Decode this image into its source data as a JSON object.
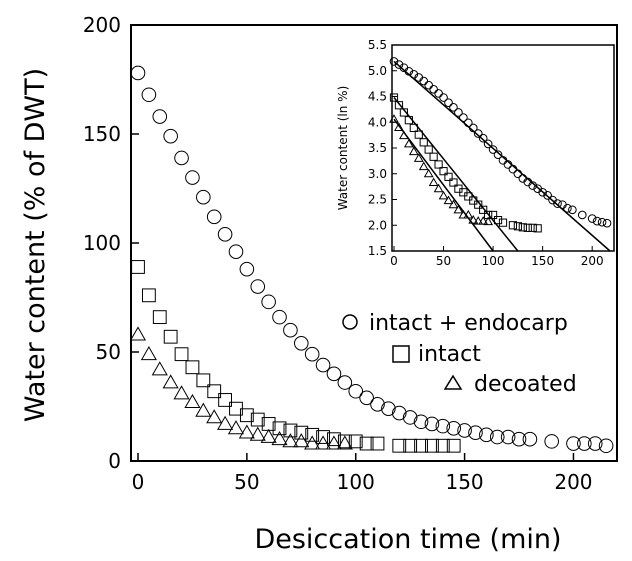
{
  "chart_data": [
    {
      "type": "scatter",
      "xlabel": "Desiccation time (min)",
      "ylabel": "Water content (% of DWT)",
      "xlim": [
        0,
        220
      ],
      "ylim": [
        0,
        200
      ],
      "xticks": [
        "0",
        "50",
        "100",
        "150",
        "200"
      ],
      "yticks": [
        "0",
        "50",
        "100",
        "150",
        "200"
      ],
      "legend_position": "right",
      "series": [
        {
          "name": "intact + endocarp",
          "marker": "circle",
          "x": [
            0,
            5,
            10,
            15,
            20,
            25,
            30,
            35,
            40,
            45,
            50,
            55,
            60,
            65,
            70,
            75,
            80,
            85,
            90,
            95,
            100,
            105,
            110,
            115,
            120,
            125,
            130,
            135,
            140,
            145,
            150,
            155,
            160,
            165,
            170,
            175,
            180,
            190,
            200,
            205,
            210,
            215
          ],
          "y": [
            178,
            168,
            158,
            149,
            139,
            130,
            121,
            112,
            104,
            96,
            88,
            80,
            73,
            66,
            60,
            54,
            49,
            44,
            40,
            36,
            32,
            29,
            26,
            24,
            22,
            20,
            18,
            17,
            16,
            15,
            14,
            13,
            12,
            11,
            11,
            10,
            10,
            9,
            8,
            8,
            8,
            7
          ]
        },
        {
          "name": "intact",
          "marker": "square",
          "x": [
            0,
            5,
            10,
            15,
            20,
            25,
            30,
            35,
            40,
            45,
            50,
            55,
            60,
            65,
            70,
            75,
            80,
            85,
            90,
            95,
            100,
            105,
            110,
            120,
            125,
            130,
            135,
            140,
            145
          ],
          "y": [
            89,
            76,
            66,
            57,
            49,
            43,
            37,
            32,
            28,
            24,
            21,
            19,
            17,
            15,
            14,
            13,
            12,
            11,
            10,
            9,
            9,
            8,
            8,
            7,
            7,
            7,
            7,
            7,
            7
          ]
        },
        {
          "name": "decoated",
          "marker": "triangle",
          "x": [
            0,
            5,
            10,
            15,
            20,
            25,
            30,
            35,
            40,
            45,
            50,
            55,
            60,
            65,
            70,
            75,
            80,
            85,
            90,
            95
          ],
          "y": [
            58,
            49,
            42,
            36,
            31,
            27,
            23,
            20,
            17,
            15,
            13,
            12,
            11,
            10,
            9,
            9,
            8,
            8,
            8,
            8
          ]
        }
      ]
    },
    {
      "type": "scatter",
      "inset": true,
      "ylabel": "Water content (ln %)",
      "xlim": [
        0,
        220
      ],
      "ylim": [
        1.5,
        5.5
      ],
      "xticks": [
        "0",
        "50",
        "100",
        "150",
        "200"
      ],
      "yticks": [
        "1.5",
        "2.0",
        "2.5",
        "3.0",
        "3.5",
        "4.0",
        "4.5",
        "5.0",
        "5.5"
      ],
      "series": [
        {
          "marker": "circle",
          "x": [
            0,
            5,
            10,
            15,
            20,
            25,
            30,
            35,
            40,
            45,
            50,
            55,
            60,
            65,
            70,
            75,
            80,
            85,
            90,
            95,
            100,
            105,
            110,
            115,
            120,
            125,
            130,
            135,
            140,
            145,
            150,
            155,
            160,
            165,
            170,
            175,
            180,
            190,
            200,
            205,
            210,
            215
          ],
          "y": [
            5.18,
            5.12,
            5.06,
            4.99,
            4.93,
            4.87,
            4.8,
            4.72,
            4.64,
            4.56,
            4.48,
            4.38,
            4.29,
            4.19,
            4.09,
            3.99,
            3.89,
            3.78,
            3.69,
            3.58,
            3.47,
            3.37,
            3.26,
            3.18,
            3.09,
            3.0,
            2.91,
            2.84,
            2.77,
            2.71,
            2.64,
            2.58,
            2.49,
            2.42,
            2.4,
            2.33,
            2.3,
            2.2,
            2.13,
            2.08,
            2.06,
            2.04
          ],
          "fit": {
            "x": [
              0,
              218
            ],
            "y": [
              5.18,
              1.5
            ]
          }
        },
        {
          "marker": "square",
          "x": [
            0,
            5,
            10,
            15,
            20,
            25,
            30,
            35,
            40,
            45,
            50,
            55,
            60,
            65,
            70,
            75,
            80,
            85,
            90,
            95,
            100,
            105,
            110,
            120,
            125,
            130,
            135,
            140,
            145
          ],
          "y": [
            4.48,
            4.33,
            4.19,
            4.04,
            3.89,
            3.76,
            3.61,
            3.47,
            3.33,
            3.18,
            3.05,
            2.94,
            2.83,
            2.71,
            2.64,
            2.56,
            2.48,
            2.4,
            2.3,
            2.2,
            2.2,
            2.1,
            2.05,
            2.0,
            1.98,
            1.96,
            1.95,
            1.95,
            1.94
          ],
          "fit": {
            "x": [
              0,
              125
            ],
            "y": [
              4.48,
              1.5
            ]
          }
        },
        {
          "marker": "triangle",
          "x": [
            0,
            5,
            10,
            15,
            20,
            25,
            30,
            35,
            40,
            45,
            50,
            55,
            60,
            65,
            70,
            75,
            80,
            85,
            90,
            95
          ],
          "y": [
            4.06,
            3.9,
            3.74,
            3.58,
            3.43,
            3.3,
            3.14,
            3.0,
            2.83,
            2.71,
            2.57,
            2.48,
            2.4,
            2.3,
            2.2,
            2.2,
            2.1,
            2.08,
            2.08,
            2.07
          ],
          "fit": {
            "x": [
              0,
              100
            ],
            "y": [
              4.06,
              1.5
            ]
          }
        }
      ]
    }
  ]
}
